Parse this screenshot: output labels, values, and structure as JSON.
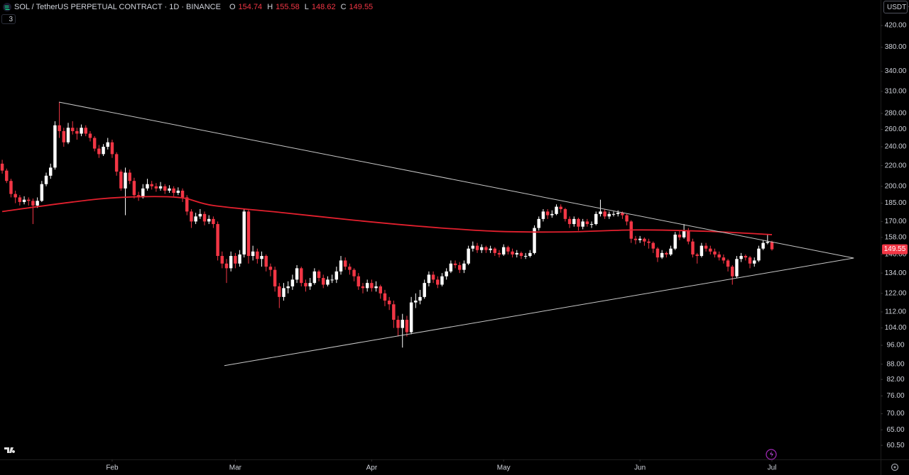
{
  "chart_data": {
    "type": "candlestick",
    "title": "SOL / TetherUS PERPETUAL CONTRACT · 1D · BINANCE",
    "ohlc_labels": [
      "O",
      "H",
      "L",
      "C"
    ],
    "currency": "USDT",
    "indicators_count": 3,
    "up_color": "#ffffff",
    "down_color": "#f23645",
    "log_scale": true,
    "xlim": [
      -0.5,
      199.7
    ],
    "ylim": [
      56.7,
      472.5
    ],
    "xticks": [
      {
        "value": 25,
        "label": "Feb"
      },
      {
        "value": 53,
        "label": "Mar"
      },
      {
        "value": 84,
        "label": "Apr"
      },
      {
        "value": 114,
        "label": "May"
      },
      {
        "value": 145,
        "label": "Jun"
      },
      {
        "value": 175,
        "label": "Jul"
      }
    ],
    "yticks": [
      {
        "value": 420,
        "label": "420.00"
      },
      {
        "value": 380,
        "label": "380.00"
      },
      {
        "value": 340,
        "label": "340.00"
      },
      {
        "value": 310,
        "label": "310.00"
      },
      {
        "value": 280,
        "label": "280.00"
      },
      {
        "value": 260,
        "label": "260.00"
      },
      {
        "value": 240,
        "label": "240.00"
      },
      {
        "value": 220,
        "label": "220.00"
      },
      {
        "value": 200,
        "label": "200.00"
      },
      {
        "value": 185,
        "label": "185.00"
      },
      {
        "value": 170,
        "label": "170.00"
      },
      {
        "value": 158,
        "label": "158.00"
      },
      {
        "value": 146,
        "label": "146.00"
      },
      {
        "value": 134,
        "label": "134.00"
      },
      {
        "value": 122,
        "label": "122.00"
      },
      {
        "value": 112,
        "label": "112.00"
      },
      {
        "value": 104,
        "label": "104.00"
      },
      {
        "value": 96,
        "label": "96.00"
      },
      {
        "value": 88,
        "label": "88.00"
      },
      {
        "value": 82,
        "label": "82.00"
      },
      {
        "value": 76,
        "label": "76.00"
      },
      {
        "value": 70,
        "label": "70.00"
      },
      {
        "value": 65,
        "label": "65.00"
      },
      {
        "value": 60.5,
        "label": "60.50"
      }
    ],
    "candles": [
      [
        222,
        226,
        212,
        215
      ],
      [
        215,
        217,
        203,
        205
      ],
      [
        205,
        207,
        190,
        193
      ],
      [
        193,
        196,
        185,
        190
      ],
      [
        190,
        192,
        183,
        186
      ],
      [
        186,
        191,
        184,
        188
      ],
      [
        188,
        190,
        183,
        187
      ],
      [
        187,
        189,
        168,
        183
      ],
      [
        183,
        190,
        181,
        187
      ],
      [
        187,
        205,
        186,
        202
      ],
      [
        202,
        213,
        200,
        210
      ],
      [
        210,
        222,
        207,
        218
      ],
      [
        218,
        270,
        216,
        265
      ],
      [
        265,
        295,
        250,
        258
      ],
      [
        258,
        262,
        240,
        245
      ],
      [
        245,
        268,
        243,
        262
      ],
      [
        262,
        270,
        254,
        258
      ],
      [
        258,
        262,
        248,
        255
      ],
      [
        255,
        266,
        252,
        262
      ],
      [
        262,
        265,
        252,
        255
      ],
      [
        255,
        258,
        246,
        250
      ],
      [
        250,
        252,
        235,
        238
      ],
      [
        238,
        242,
        228,
        232
      ],
      [
        232,
        243,
        230,
        240
      ],
      [
        240,
        250,
        237,
        245
      ],
      [
        245,
        248,
        228,
        232
      ],
      [
        232,
        234,
        210,
        214
      ],
      [
        214,
        216,
        196,
        198
      ],
      [
        198,
        218,
        175,
        213
      ],
      [
        213,
        216,
        202,
        205
      ],
      [
        205,
        208,
        189,
        192
      ],
      [
        192,
        195,
        187,
        190
      ],
      [
        190,
        202,
        189,
        198
      ],
      [
        198,
        207,
        196,
        202
      ],
      [
        202,
        205,
        197,
        200
      ],
      [
        200,
        203,
        195,
        198
      ],
      [
        198,
        204,
        196,
        200
      ],
      [
        200,
        202,
        193,
        196
      ],
      [
        196,
        201,
        194,
        198
      ],
      [
        198,
        200,
        191,
        194
      ],
      [
        194,
        199,
        192,
        196
      ],
      [
        196,
        198,
        186,
        190
      ],
      [
        190,
        192,
        175,
        178
      ],
      [
        178,
        180,
        165,
        170
      ],
      [
        170,
        177,
        168,
        174
      ],
      [
        174,
        180,
        172,
        176
      ],
      [
        176,
        178,
        167,
        170
      ],
      [
        170,
        175,
        168,
        172
      ],
      [
        172,
        174,
        165,
        168
      ],
      [
        168,
        170,
        142,
        145
      ],
      [
        145,
        148,
        137,
        140
      ],
      [
        140,
        143,
        128,
        137
      ],
      [
        137,
        148,
        135,
        145
      ],
      [
        145,
        147,
        137,
        140
      ],
      [
        140,
        149,
        138,
        146
      ],
      [
        146,
        180,
        144,
        178
      ],
      [
        178,
        180,
        140,
        145
      ],
      [
        145,
        152,
        142,
        148
      ],
      [
        148,
        150,
        140,
        143
      ],
      [
        143,
        148,
        138,
        145
      ],
      [
        145,
        146,
        135,
        138
      ],
      [
        138,
        140,
        132,
        136
      ],
      [
        136,
        138,
        123,
        126
      ],
      [
        126,
        128,
        114,
        120
      ],
      [
        120,
        128,
        118,
        125
      ],
      [
        125,
        129,
        122,
        126
      ],
      [
        126,
        133,
        124,
        130
      ],
      [
        130,
        139,
        128,
        137
      ],
      [
        137,
        138,
        126,
        128
      ],
      [
        128,
        130,
        123,
        126
      ],
      [
        126,
        131,
        124,
        128
      ],
      [
        128,
        137,
        127,
        135
      ],
      [
        135,
        136,
        129,
        131
      ],
      [
        131,
        133,
        125,
        127
      ],
      [
        127,
        132,
        126,
        130
      ],
      [
        130,
        133,
        128,
        130
      ],
      [
        130,
        138,
        128,
        135
      ],
      [
        135,
        145,
        133,
        142
      ],
      [
        142,
        144,
        136,
        138
      ],
      [
        138,
        140,
        133,
        136
      ],
      [
        136,
        137,
        129,
        132
      ],
      [
        132,
        134,
        124,
        126
      ],
      [
        126,
        128,
        122,
        125
      ],
      [
        125,
        130,
        123,
        128
      ],
      [
        128,
        130,
        123,
        125
      ],
      [
        125,
        129,
        123,
        126
      ],
      [
        126,
        127,
        119,
        122
      ],
      [
        122,
        124,
        115,
        118
      ],
      [
        118,
        120,
        113,
        116
      ],
      [
        116,
        118,
        104,
        108
      ],
      [
        108,
        110,
        100,
        104
      ],
      [
        104,
        111,
        95,
        108
      ],
      [
        108,
        110,
        100,
        102
      ],
      [
        102,
        120,
        101,
        117
      ],
      [
        117,
        122,
        114,
        118
      ],
      [
        118,
        124,
        116,
        120
      ],
      [
        120,
        130,
        119,
        128
      ],
      [
        128,
        135,
        126,
        133
      ],
      [
        133,
        135,
        128,
        130
      ],
      [
        130,
        132,
        125,
        127
      ],
      [
        127,
        134,
        126,
        132
      ],
      [
        132,
        137,
        130,
        135
      ],
      [
        135,
        142,
        134,
        140
      ],
      [
        140,
        142,
        137,
        139
      ],
      [
        139,
        141,
        134,
        136
      ],
      [
        136,
        142,
        134,
        140
      ],
      [
        140,
        152,
        139,
        150
      ],
      [
        150,
        155,
        148,
        152
      ],
      [
        152,
        154,
        147,
        149
      ],
      [
        149,
        153,
        147,
        151
      ],
      [
        151,
        152,
        147,
        149
      ],
      [
        149,
        152,
        147,
        150
      ],
      [
        150,
        151,
        145,
        147
      ],
      [
        147,
        149,
        144,
        146
      ],
      [
        146,
        153,
        145,
        151
      ],
      [
        151,
        152,
        146,
        148
      ],
      [
        148,
        150,
        144,
        146
      ],
      [
        146,
        149,
        144,
        147
      ],
      [
        147,
        148,
        143,
        145
      ],
      [
        145,
        147,
        143,
        145
      ],
      [
        145,
        149,
        144,
        147
      ],
      [
        147,
        167,
        146,
        165
      ],
      [
        165,
        174,
        163,
        172
      ],
      [
        172,
        180,
        170,
        178
      ],
      [
        178,
        180,
        172,
        175
      ],
      [
        175,
        179,
        173,
        176
      ],
      [
        176,
        184,
        175,
        182
      ],
      [
        182,
        184,
        177,
        180
      ],
      [
        180,
        181,
        170,
        172
      ],
      [
        172,
        174,
        165,
        168
      ],
      [
        168,
        174,
        166,
        172
      ],
      [
        172,
        173,
        163,
        166
      ],
      [
        166,
        172,
        164,
        170
      ],
      [
        170,
        172,
        166,
        168
      ],
      [
        168,
        170,
        165,
        168
      ],
      [
        168,
        178,
        167,
        176
      ],
      [
        176,
        188,
        174,
        178
      ],
      [
        178,
        180,
        172,
        174
      ],
      [
        174,
        178,
        172,
        176
      ],
      [
        176,
        178,
        174,
        176
      ],
      [
        176,
        179,
        174,
        177
      ],
      [
        177,
        178,
        172,
        175
      ],
      [
        175,
        176,
        167,
        170
      ],
      [
        170,
        171,
        154,
        157
      ],
      [
        157,
        159,
        153,
        156
      ],
      [
        156,
        159,
        154,
        157
      ],
      [
        157,
        158,
        152,
        155
      ],
      [
        155,
        157,
        150,
        154
      ],
      [
        154,
        155,
        147,
        150
      ],
      [
        150,
        151,
        141,
        144
      ],
      [
        144,
        149,
        143,
        147
      ],
      [
        147,
        148,
        144,
        146
      ],
      [
        146,
        152,
        145,
        150
      ],
      [
        150,
        162,
        149,
        160
      ],
      [
        160,
        163,
        156,
        158
      ],
      [
        158,
        168,
        157,
        163
      ],
      [
        163,
        165,
        153,
        155
      ],
      [
        155,
        157,
        144,
        146
      ],
      [
        146,
        147,
        140,
        145
      ],
      [
        145,
        154,
        144,
        152
      ],
      [
        152,
        154,
        148,
        150
      ],
      [
        150,
        152,
        146,
        148
      ],
      [
        148,
        150,
        144,
        146
      ],
      [
        146,
        148,
        142,
        144
      ],
      [
        144,
        146,
        140,
        142
      ],
      [
        142,
        143,
        135,
        138
      ],
      [
        138,
        139,
        127,
        132
      ],
      [
        132,
        145,
        131,
        143
      ],
      [
        143,
        147,
        141,
        145
      ],
      [
        145,
        146,
        142,
        144
      ],
      [
        144,
        145,
        137,
        140
      ],
      [
        140,
        144,
        138,
        142
      ],
      [
        142,
        152,
        141,
        150
      ],
      [
        150,
        156,
        149,
        154
      ],
      [
        154,
        160,
        153,
        154.74
      ],
      [
        154.74,
        155.58,
        148.62,
        149.55
      ]
    ],
    "ma": {
      "color": "#e3202e",
      "x": [
        0,
        16,
        27,
        40,
        48,
        64,
        80,
        96,
        112,
        128,
        144,
        160,
        175
      ],
      "values": [
        178,
        186,
        190,
        190,
        183,
        177,
        171,
        166,
        162.5,
        162,
        163.5,
        162.5,
        160
      ]
    },
    "trendlines": [
      {
        "color": "#c8c8c8",
        "x": [
          12.9,
          193.6
        ],
        "y": [
          295,
          143.6
        ]
      },
      {
        "color": "#c8c8c8",
        "x": [
          50.5,
          193.6
        ],
        "y": [
          87.4,
          143.6
        ]
      }
    ]
  }
}
